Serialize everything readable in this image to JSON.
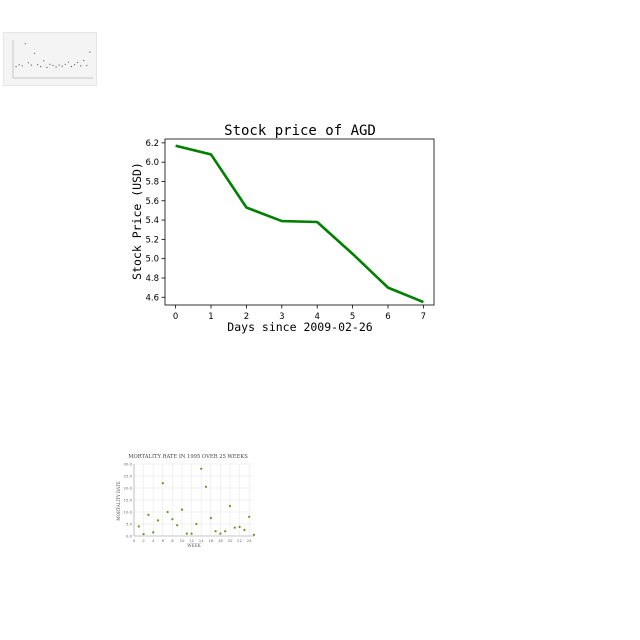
{
  "chart_data": [
    {
      "type": "line",
      "title": "Stock price of AGD",
      "xlabel": "Days since 2009-02-26",
      "ylabel": "Stock Price (USD)",
      "x": [
        0,
        1,
        2,
        3,
        4,
        5,
        6,
        7
      ],
      "series": [
        {
          "values": [
            6.17,
            6.08,
            5.53,
            5.39,
            5.38,
            5.05,
            4.7,
            4.55
          ],
          "color": "#008000"
        }
      ],
      "xlim": [
        -0.3,
        7.3
      ],
      "ylim": [
        4.52,
        6.24
      ],
      "xticks": [
        "0",
        "1",
        "2",
        "3",
        "4",
        "5",
        "6",
        "7"
      ],
      "yticks": [
        "4.6",
        "4.8",
        "5.0",
        "5.2",
        "5.4",
        "5.6",
        "5.8",
        "6.0",
        "6.2"
      ],
      "grid": false
    },
    {
      "type": "scatter",
      "title": "MORTALITY RATE IN 1995 OVER 25 WEEKS",
      "xlabel": "WEEK",
      "ylabel": "MORTALITY RATE",
      "x": [
        1,
        2,
        3,
        4,
        5,
        6,
        7,
        8,
        9,
        10,
        11,
        12,
        13,
        14,
        15,
        16,
        17,
        18,
        19,
        20,
        21,
        22,
        23,
        24,
        25
      ],
      "series": [
        {
          "values": [
            4.0,
            0.8,
            8.8,
            1.5,
            6.5,
            22.0,
            10.0,
            7.0,
            4.5,
            11.0,
            1.0,
            1.0,
            5.0,
            28.0,
            20.5,
            7.5,
            2.0,
            1.0,
            2.0,
            12.5,
            3.5,
            3.8,
            2.5,
            8.0,
            0.5
          ],
          "color": "#6b8e23"
        }
      ],
      "xticks": [
        "0",
        "2",
        "4",
        "6",
        "8",
        "10",
        "12",
        "14",
        "16",
        "18",
        "20",
        "22",
        "24"
      ],
      "yticks": [
        "0.0",
        "5.0",
        "10.0",
        "15.0",
        "20.0",
        "25.0",
        "30.0"
      ],
      "ylim": [
        0,
        30
      ],
      "xlim": [
        0,
        25
      ],
      "grid": true
    },
    {
      "type": "scatter",
      "title": "",
      "xlabel": "",
      "ylabel": "",
      "x": [
        1,
        2,
        3,
        4,
        5,
        6,
        7,
        8,
        9,
        10,
        11,
        12,
        13,
        14,
        15,
        16,
        17,
        18,
        19,
        20,
        21,
        22,
        23,
        24,
        25
      ],
      "series": [
        {
          "values": [
            3,
            3.5,
            3.2,
            9,
            4,
            3.4,
            6.5,
            3.5,
            3,
            4.5,
            2.8,
            3.6,
            3.3,
            2.9,
            3.4,
            3.1,
            3.6,
            4.2,
            3,
            3.5,
            4.1,
            3.2,
            4.6,
            3.3,
            6.8
          ],
          "color": "#555555"
        }
      ],
      "ylim": [
        0,
        10
      ],
      "grid": false
    }
  ]
}
